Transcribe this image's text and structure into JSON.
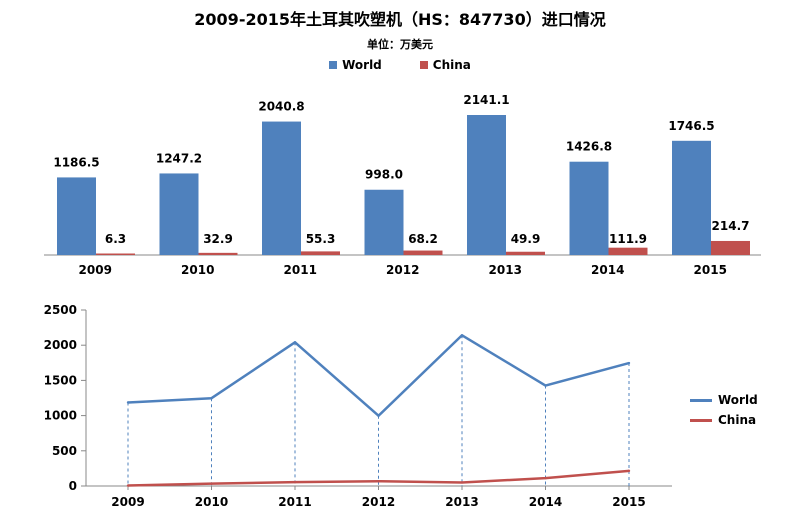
{
  "title": "2009-2015年土耳其吹塑机（HS：847730）进口情况",
  "subtitle": "单位：万美元",
  "colors": {
    "world": "#4F81BD",
    "china": "#C0504D"
  },
  "chart_data": [
    {
      "type": "bar",
      "categories": [
        "2009",
        "2010",
        "2011",
        "2012",
        "2013",
        "2014",
        "2015"
      ],
      "series": [
        {
          "name": "World",
          "values": [
            1186.5,
            1247.2,
            2040.8,
            998.0,
            2141.1,
            1426.8,
            1746.5
          ],
          "labels": [
            "1186.5",
            "1247.2",
            "2040.8",
            "998.0",
            "2141.1",
            "1426.8",
            "1746.5"
          ]
        },
        {
          "name": "China",
          "values": [
            6.3,
            32.9,
            55.3,
            68.2,
            49.9,
            111.9,
            214.7
          ],
          "labels": [
            "6.3",
            "32.9",
            "55.3",
            "68.2",
            "49.9",
            "111.9",
            "214.7"
          ]
        }
      ],
      "legend": "top"
    },
    {
      "type": "line",
      "categories": [
        "2009",
        "2010",
        "2011",
        "2012",
        "2013",
        "2014",
        "2015"
      ],
      "series": [
        {
          "name": "World",
          "values": [
            1186.5,
            1247.2,
            2040.8,
            998.0,
            2141.1,
            1426.8,
            1746.5
          ]
        },
        {
          "name": "China",
          "values": [
            6.3,
            32.9,
            55.3,
            68.2,
            49.9,
            111.9,
            214.7
          ]
        }
      ],
      "ylim": [
        0,
        2500
      ],
      "yticks": [
        "0",
        "500",
        "1000",
        "1500",
        "2000",
        "2500"
      ],
      "legend": "right"
    }
  ]
}
